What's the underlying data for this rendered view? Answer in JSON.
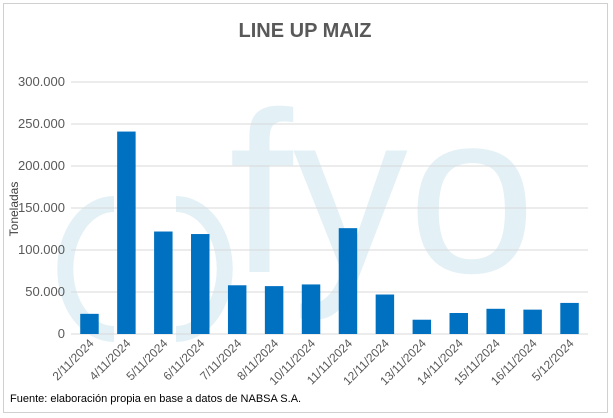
{
  "chart_data": {
    "type": "bar",
    "title": "LINE UP MAIZ",
    "ylabel": "Toneladas",
    "xlabel": "",
    "ylim": [
      0,
      300000
    ],
    "yticks": [
      0,
      50000,
      100000,
      150000,
      200000,
      250000,
      300000
    ],
    "ytick_labels": [
      "0",
      "50.000",
      "100.000",
      "150.000",
      "200.000",
      "250.000",
      "300.000"
    ],
    "categories": [
      "2/11/2024",
      "4/11/2024",
      "5/11/2024",
      "6/11/2024",
      "7/11/2024",
      "8/11/2024",
      "10/11/2024",
      "11/11/2024",
      "12/11/2024",
      "13/11/2024",
      "14/11/2024",
      "15/11/2024",
      "16/11/2024",
      "5/12/2024"
    ],
    "values": [
      24000,
      241000,
      122000,
      119000,
      58000,
      57000,
      59000,
      126000,
      47000,
      17000,
      25000,
      30000,
      29000,
      37000
    ],
    "bar_color": "#0070c0",
    "grid": true,
    "legend": "none"
  },
  "footer": {
    "source": "Fuente: elaboración propia en base a datos de NABSA S.A."
  },
  "watermark": {
    "text": "fyo",
    "color": "#e3f1f6"
  }
}
